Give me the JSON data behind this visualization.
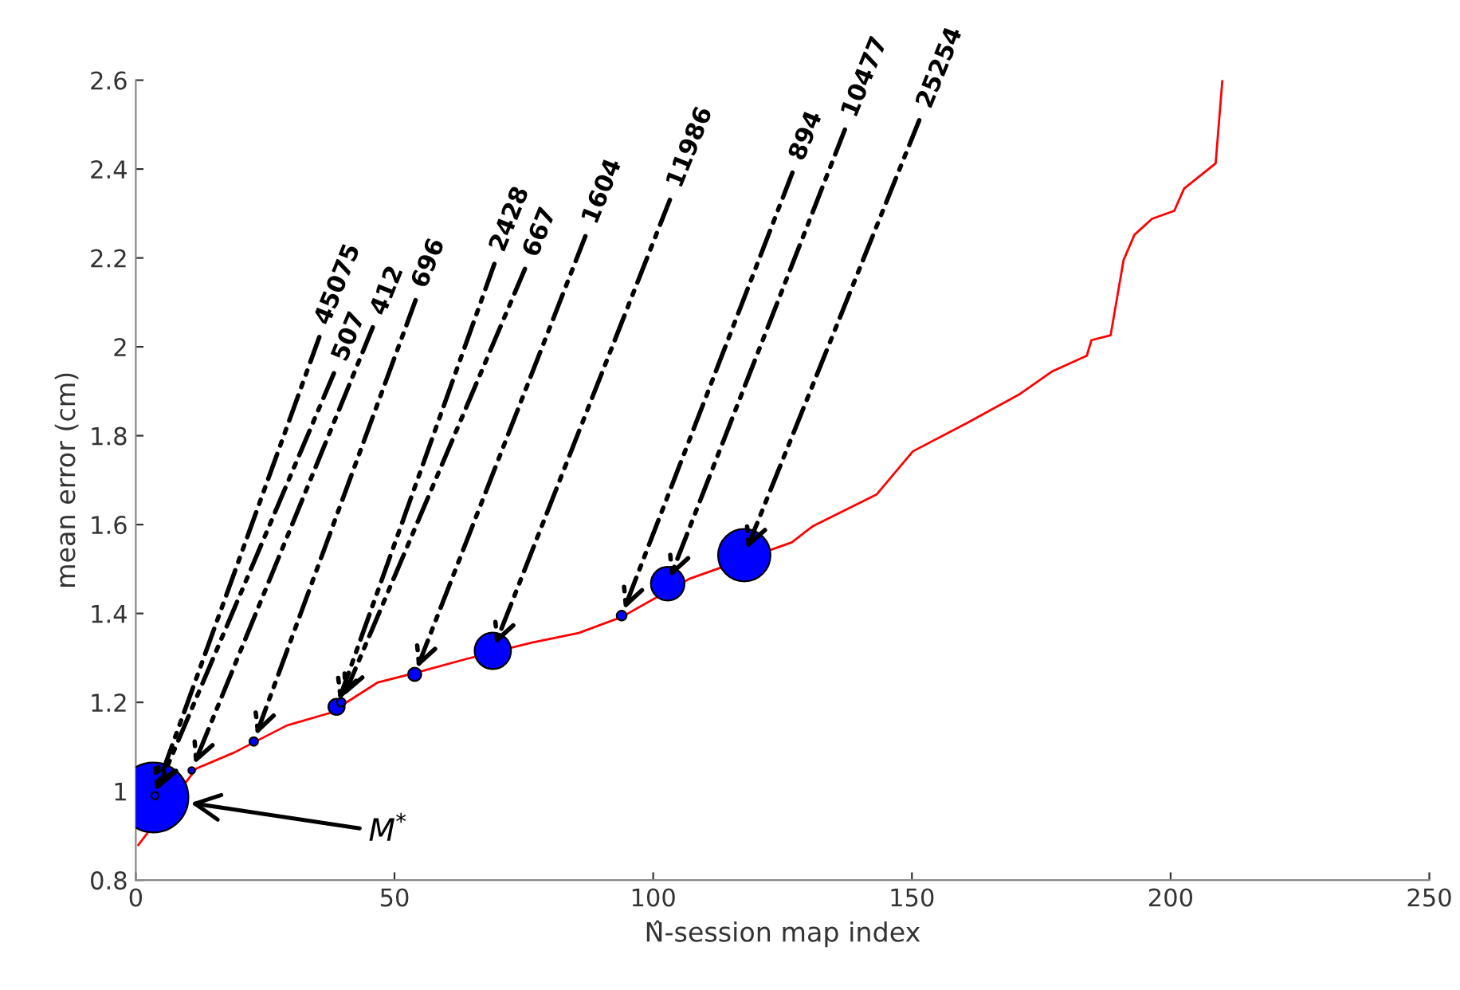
{
  "chart_data": {
    "type": "bubble",
    "xlabel": "N̂-session map index",
    "ylabel": "mean error (cm)",
    "xlim": [
      0,
      250
    ],
    "ylim": [
      0.8,
      2.6
    ],
    "xticks": [
      0,
      50,
      100,
      150,
      200,
      250
    ],
    "yticks": [
      0.8,
      1,
      1.2,
      1.4,
      1.6,
      1.8,
      2,
      2.2,
      2.4,
      2.6
    ],
    "grid": false,
    "legend": false,
    "series": [
      {
        "type": "line",
        "color": "#ff0000",
        "x": [
          0.5,
          11.7,
          19,
          29.2,
          37.5,
          46.8,
          53.9,
          64,
          76.4,
          85.6,
          93.9,
          107,
          126.8,
          130.8,
          143.2,
          150.2,
          160.7,
          170.9,
          177,
          183.8,
          184.7,
          188.4,
          190.9,
          193,
          196.4,
          200.7,
          202.6,
          208.7,
          210
        ],
        "values": [
          0.879,
          1.051,
          1.087,
          1.148,
          1.176,
          1.245,
          1.266,
          1.298,
          1.334,
          1.356,
          1.392,
          1.478,
          1.56,
          1.596,
          1.668,
          1.765,
          1.829,
          1.894,
          1.944,
          1.98,
          2.015,
          2.026,
          2.195,
          2.252,
          2.288,
          2.306,
          2.356,
          2.413,
          2.6
        ]
      },
      {
        "type": "bubble",
        "color": "#0000ff",
        "x": [
          3.4,
          3.7,
          10.8,
          22.8,
          38.8,
          39.7,
          53.9,
          69,
          93.9,
          102.8,
          117.6
        ],
        "values": [
          0.986,
          0.99,
          1.047,
          1.112,
          1.19,
          1.2,
          1.263,
          1.316,
          1.395,
          1.467,
          1.531
        ],
        "sizes": [
          1,
          0.011,
          0.0091,
          0.015,
          0.054,
          0.015,
          0.036,
          0.27,
          0.02,
          0.23,
          0.56
        ]
      }
    ],
    "annotations": [
      {
        "text": "45075",
        "x": 3.4,
        "y": 0.986
      },
      {
        "text": "507",
        "x": 3.7,
        "y": 0.99
      },
      {
        "text": "412",
        "x": 10.8,
        "y": 1.047
      },
      {
        "text": "696",
        "x": 22.8,
        "y": 1.112
      },
      {
        "text": "2428",
        "x": 38.8,
        "y": 1.19
      },
      {
        "text": "667",
        "x": 39.7,
        "y": 1.2
      },
      {
        "text": "1604",
        "x": 53.9,
        "y": 1.263
      },
      {
        "text": "11986",
        "x": 69,
        "y": 1.316
      },
      {
        "text": "894",
        "x": 93.9,
        "y": 1.395
      },
      {
        "text": "10477",
        "x": 102.8,
        "y": 1.467
      },
      {
        "text": "25254",
        "x": 117.6,
        "y": 1.531
      },
      "M$^{*}$"
    ]
  }
}
